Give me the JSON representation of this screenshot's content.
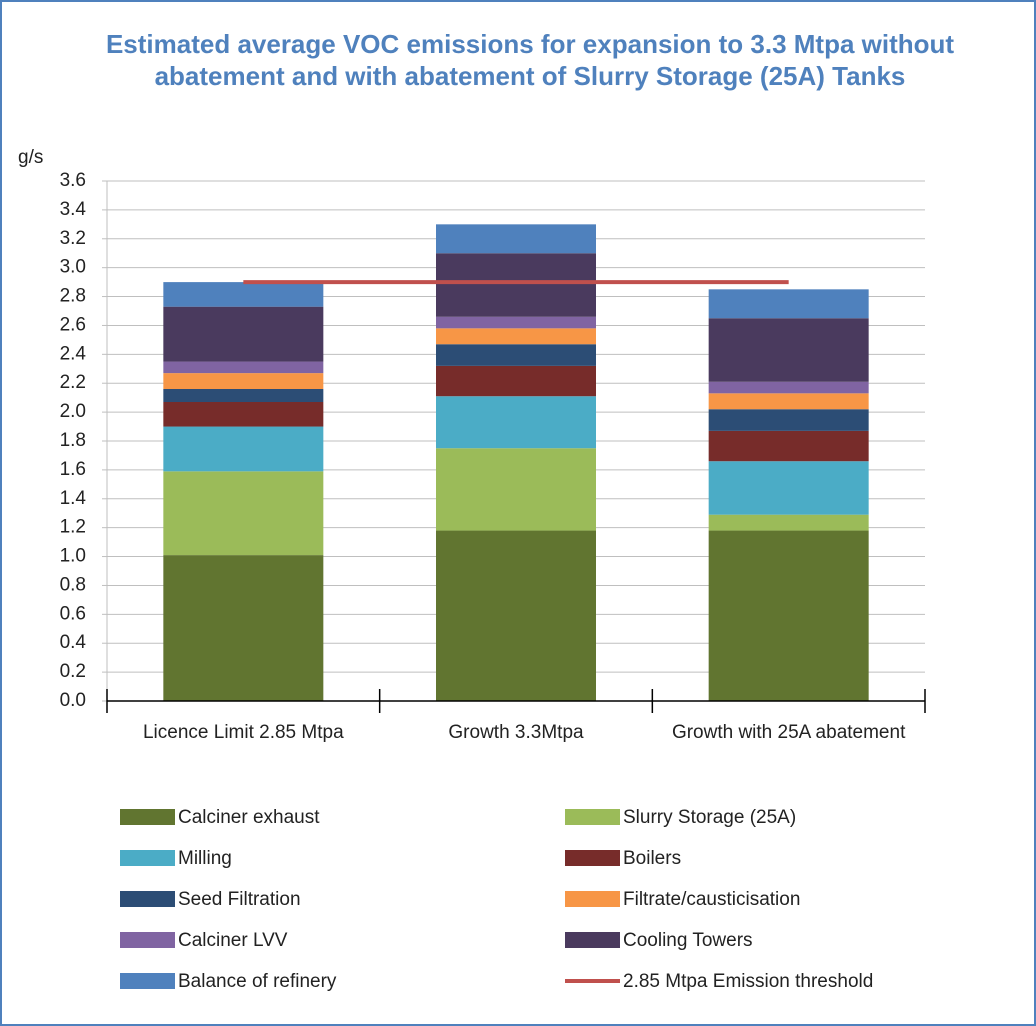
{
  "chart_data": {
    "type": "stacked_bar",
    "title": "Estimated average VOC emissions for expansion to 3.3 Mtpa without abatement and with abatement of Slurry Storage (25A) Tanks",
    "ylabel": "g/s",
    "categories": [
      "Licence Limit 2.85 Mtpa",
      "Growth 3.3Mtpa",
      "Growth with 25A abatement"
    ],
    "series": [
      {
        "name": "Calciner exhaust",
        "color": "#617530",
        "values": [
          1.01,
          1.18,
          1.18
        ]
      },
      {
        "name": "Slurry Storage (25A)",
        "color": "#9bbb59",
        "values": [
          0.58,
          0.57,
          0.11
        ]
      },
      {
        "name": "Milling",
        "color": "#4bacc6",
        "values": [
          0.31,
          0.36,
          0.37
        ]
      },
      {
        "name": "Boilers",
        "color": "#772c2a",
        "values": [
          0.17,
          0.21,
          0.21
        ]
      },
      {
        "name": "Seed Filtration",
        "color": "#2c4d75",
        "values": [
          0.09,
          0.15,
          0.15
        ]
      },
      {
        "name": "Filtrate/causticisation",
        "color": "#f79646",
        "values": [
          0.11,
          0.11,
          0.11
        ]
      },
      {
        "name": "Calciner LVV",
        "color": "#8064a2",
        "values": [
          0.08,
          0.08,
          0.08
        ]
      },
      {
        "name": "Cooling Towers",
        "color": "#4a3a5e",
        "values": [
          0.38,
          0.44,
          0.44
        ]
      },
      {
        "name": "Balance of refinery",
        "color": "#4f81bd",
        "values": [
          0.17,
          0.2,
          0.2
        ]
      }
    ],
    "threshold": {
      "name": "2.85 Mtpa Emission threshold",
      "color": "#c0504d",
      "values": [
        2.9,
        2.9,
        2.9
      ]
    },
    "ylim": [
      0,
      3.6
    ],
    "yticks": [
      {
        "value": 0,
        "label": "0.0"
      },
      0.2,
      0.4,
      0.6,
      0.8,
      {
        "value": 1,
        "label": "1.0"
      },
      1.2,
      1.4,
      1.6,
      1.8,
      {
        "value": 2,
        "label": "2.0"
      },
      2.2,
      2.4,
      2.6,
      2.8,
      {
        "value": 3,
        "label": "3.0"
      },
      3.2,
      3.4,
      3.6
    ],
    "grid": true
  }
}
